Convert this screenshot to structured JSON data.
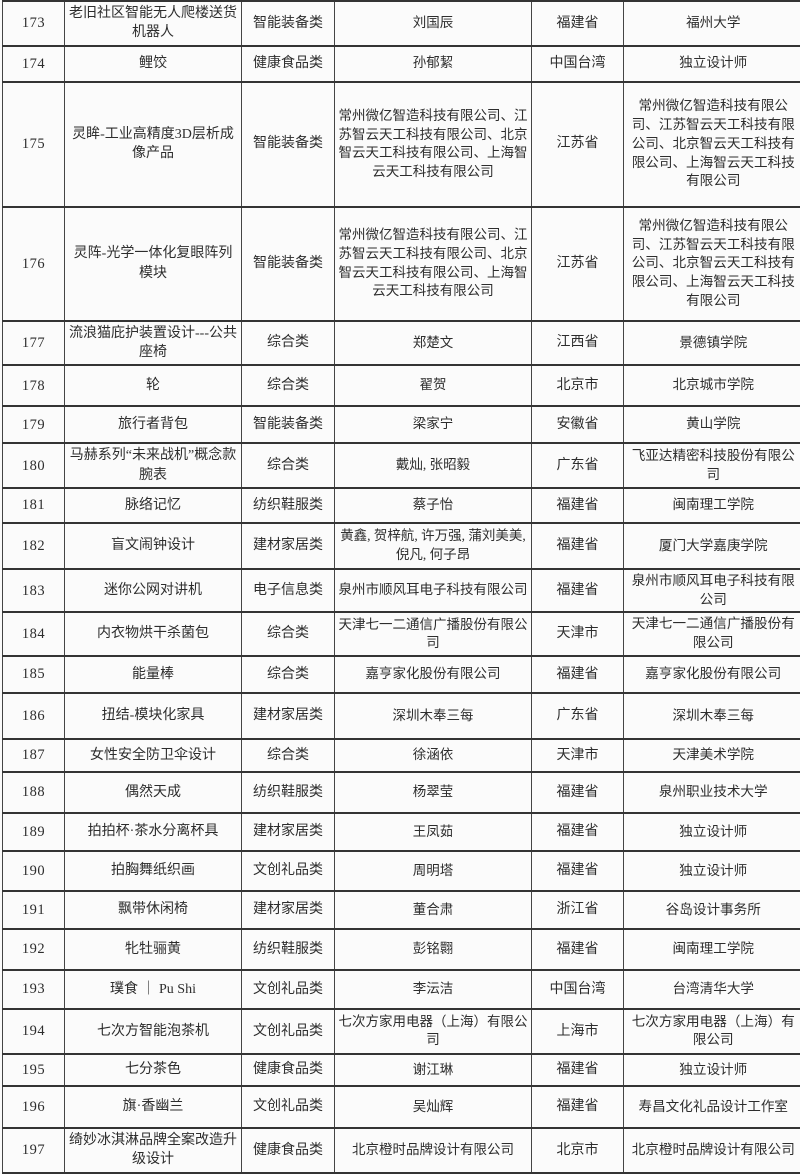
{
  "table": {
    "rows": [
      {
        "no": "173",
        "name": "老旧社区智能无人爬楼送货机器人",
        "category": "智能装备类",
        "designer": "刘国辰",
        "province": "福建省",
        "org": "福州大学"
      },
      {
        "no": "174",
        "name": "鲤饺",
        "category": "健康食品类",
        "designer": "孙郁絜",
        "province": "中国台湾",
        "org": "独立设计师"
      },
      {
        "no": "175",
        "name": "灵眸-工业高精度3D层析成像产品",
        "category": "智能装备类",
        "designer": "常州微亿智造科技有限公司、江苏智云天工科技有限公司、北京智云天工科技有限公司、上海智云天工科技有限公司",
        "province": "江苏省",
        "org": "常州微亿智造科技有限公司、江苏智云天工科技有限公司、北京智云天工科技有限公司、上海智云天工科技有限公司"
      },
      {
        "no": "176",
        "name": "灵阵-光学一体化复眼阵列模块",
        "category": "智能装备类",
        "designer": "常州微亿智造科技有限公司、江苏智云天工科技有限公司、北京智云天工科技有限公司、上海智云天工科技有限公司",
        "province": "江苏省",
        "org": "常州微亿智造科技有限公司、江苏智云天工科技有限公司、北京智云天工科技有限公司、上海智云天工科技有限公司"
      },
      {
        "no": "177",
        "name": "流浪猫庇护装置设计---公共座椅",
        "category": "综合类",
        "designer": "郑楚文",
        "province": "江西省",
        "org": "景德镇学院"
      },
      {
        "no": "178",
        "name": "轮",
        "category": "综合类",
        "designer": "翟贺",
        "province": "北京市",
        "org": "北京城市学院"
      },
      {
        "no": "179",
        "name": "旅行者背包",
        "category": "智能装备类",
        "designer": "梁家宁",
        "province": "安徽省",
        "org": "黄山学院"
      },
      {
        "no": "180",
        "name": "马赫系列“未来战机”概念款腕表",
        "category": "综合类",
        "designer": "戴灿, 张昭毅",
        "province": "广东省",
        "org": "飞亚达精密科技股份有限公司"
      },
      {
        "no": "181",
        "name": "脉络记忆",
        "category": "纺织鞋服类",
        "designer": "蔡子怡",
        "province": "福建省",
        "org": "闽南理工学院"
      },
      {
        "no": "182",
        "name": "盲文闹钟设计",
        "category": "建材家居类",
        "designer": "黄鑫, 贺梓航, 许万强, 蒲刘美美, 倪凡, 何子昂",
        "province": "福建省",
        "org": "厦门大学嘉庚学院"
      },
      {
        "no": "183",
        "name": "迷你公网对讲机",
        "category": "电子信息类",
        "designer": "泉州市顺风耳电子科技有限公司",
        "province": "福建省",
        "org": "泉州市顺风耳电子科技有限公司"
      },
      {
        "no": "184",
        "name": "内衣物烘干杀菌包",
        "category": "综合类",
        "designer": "天津七一二通信广播股份有限公司",
        "province": "天津市",
        "org": "天津七一二通信广播股份有限公司"
      },
      {
        "no": "185",
        "name": "能量棒",
        "category": "综合类",
        "designer": "嘉亨家化股份有限公司",
        "province": "福建省",
        "org": "嘉亨家化股份有限公司"
      },
      {
        "no": "186",
        "name": "扭结-模块化家具",
        "category": "建材家居类",
        "designer": "深圳木奉三每",
        "province": "广东省",
        "org": "深圳木奉三每"
      },
      {
        "no": "187",
        "name": "女性安全防卫伞设计",
        "category": "综合类",
        "designer": "徐涵依",
        "province": "天津市",
        "org": "天津美术学院"
      },
      {
        "no": "188",
        "name": "偶然天成",
        "category": "纺织鞋服类",
        "designer": "杨翠莹",
        "province": "福建省",
        "org": "泉州职业技术大学"
      },
      {
        "no": "189",
        "name": "拍拍杯·茶水分离杯具",
        "category": "建材家居类",
        "designer": "王凤茹",
        "province": "福建省",
        "org": "独立设计师"
      },
      {
        "no": "190",
        "name": "拍胸舞纸织画",
        "category": "文创礼品类",
        "designer": "周明塔",
        "province": "福建省",
        "org": "独立设计师"
      },
      {
        "no": "191",
        "name": "飘带休闲椅",
        "category": "建材家居类",
        "designer": "董合肃",
        "province": "浙江省",
        "org": "谷岛设计事务所"
      },
      {
        "no": "192",
        "name": "牝牡骊黄",
        "category": "纺织鞋服类",
        "designer": "彭铭翾",
        "province": "福建省",
        "org": "闽南理工学院"
      },
      {
        "no": "193",
        "name": "璞食 ｜ Pu Shi",
        "category": "文创礼品类",
        "designer": "李沄洁",
        "province": "中国台湾",
        "org": "台湾清华大学"
      },
      {
        "no": "194",
        "name": "七次方智能泡茶机",
        "category": "文创礼品类",
        "designer": "七次方家用电器（上海）有限公司",
        "province": "上海市",
        "org": "七次方家用电器（上海）有限公司"
      },
      {
        "no": "195",
        "name": "七分茶色",
        "category": "健康食品类",
        "designer": "谢江琳",
        "province": "福建省",
        "org": "独立设计师"
      },
      {
        "no": "196",
        "name": "旗·香幽兰",
        "category": "文创礼品类",
        "designer": "吴灿辉",
        "province": "福建省",
        "org": "寿昌文化礼品设计工作室"
      },
      {
        "no": "197",
        "name": "绮妙冰淇淋品牌全案改造升级设计",
        "category": "健康食品类",
        "designer": "北京橙时品牌设计有限公司",
        "province": "北京市",
        "org": "北京橙时品牌设计有限公司"
      }
    ]
  }
}
